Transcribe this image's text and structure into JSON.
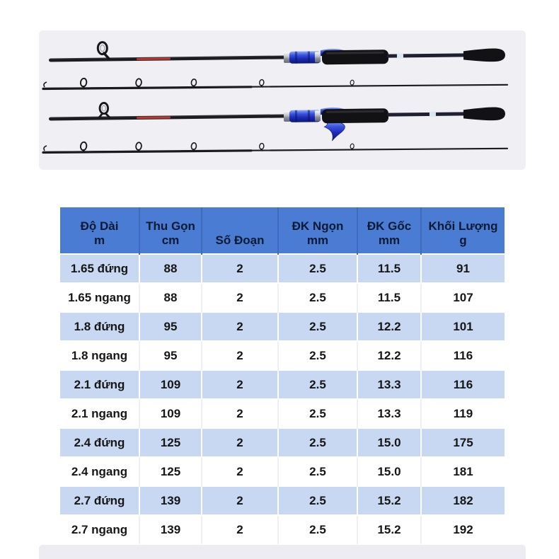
{
  "photo_section": {
    "rods": [
      {
        "name": "spinning-rod",
        "pieces": "butt-section-and-tip-section"
      },
      {
        "name": "casting-rod",
        "pieces": "butt-section-and-tip-section"
      }
    ]
  },
  "table": {
    "columns": [
      {
        "title": "Độ Dài",
        "unit": "m"
      },
      {
        "title": "Thu Gọn",
        "unit": "cm"
      },
      {
        "title": "Số Đoạn",
        "unit": ""
      },
      {
        "title": "ĐK Ngọn",
        "unit": "mm"
      },
      {
        "title": "ĐK Gốc",
        "unit": "mm"
      },
      {
        "title": "Khối Lượng",
        "unit": "g"
      }
    ],
    "rows": [
      [
        "1.65 đứng",
        "88",
        "2",
        "2.5",
        "11.5",
        "91"
      ],
      [
        "1.65 ngang",
        "88",
        "2",
        "2.5",
        "11.5",
        "107"
      ],
      [
        "1.8 đứng",
        "95",
        "2",
        "2.5",
        "12.2",
        "101"
      ],
      [
        "1.8 ngang",
        "95",
        "2",
        "2.5",
        "12.2",
        "116"
      ],
      [
        "2.1 đứng",
        "109",
        "2",
        "2.5",
        "13.3",
        "116"
      ],
      [
        "2.1 ngang",
        "109",
        "2",
        "2.5",
        "13.3",
        "119"
      ],
      [
        "2.4 đứng",
        "125",
        "2",
        "2.5",
        "15.0",
        "175"
      ],
      [
        "2.4 ngang",
        "125",
        "2",
        "2.5",
        "15.0",
        "181"
      ],
      [
        "2.7 đứng",
        "139",
        "2",
        "2.5",
        "15.2",
        "182"
      ],
      [
        "2.7 ngang",
        "139",
        "2",
        "2.5",
        "15.2",
        "192"
      ]
    ],
    "colors": {
      "header_bg": "#4a7cd4",
      "header_text": "#0c1a33",
      "row_alt_bg": "#c8d8f2",
      "row_bg": "#ffffff",
      "cell_text": "#161616",
      "photo_bg": "#f0eff4",
      "rod_accent_blue": "#1c2cb8",
      "brand_text_red": "#cc3b33"
    }
  }
}
